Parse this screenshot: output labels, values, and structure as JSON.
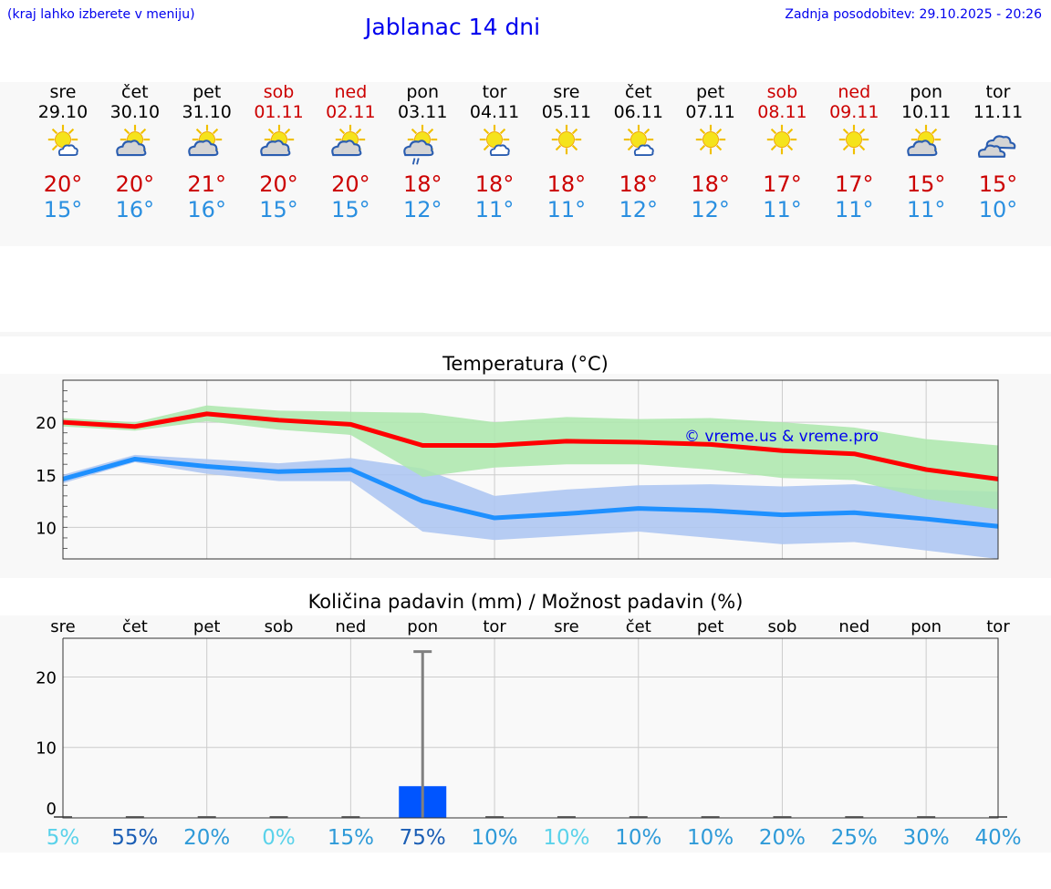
{
  "header": {
    "hint": "(kraj lahko izberete v meniju)",
    "title": "Jablanac 14 dni",
    "updated": "Zadnja posodobitev: 29.10.2025 - 20:26"
  },
  "colors": {
    "max": "#ff0000",
    "min": "#1e90ff",
    "max_band": "#abe8ab",
    "min_band": "#aec6f2",
    "bar": "#0055ff",
    "pct_light": "#5ad2ea",
    "pct_mid": "#2e9ad8",
    "pct_dark": "#1b5eb5"
  },
  "days": [
    {
      "name": "sre",
      "date": "29.10",
      "weekend": false,
      "icon": "sun-small-cloud-icon",
      "max": "20°",
      "min": "15°"
    },
    {
      "name": "čet",
      "date": "30.10",
      "weekend": false,
      "icon": "sun-cloud-icon",
      "max": "20°",
      "min": "16°"
    },
    {
      "name": "pet",
      "date": "31.10",
      "weekend": false,
      "icon": "sun-cloud-icon",
      "max": "21°",
      "min": "16°"
    },
    {
      "name": "sob",
      "date": "01.11",
      "weekend": true,
      "icon": "sun-cloud-icon",
      "max": "20°",
      "min": "15°"
    },
    {
      "name": "ned",
      "date": "02.11",
      "weekend": true,
      "icon": "sun-cloud-icon",
      "max": "20°",
      "min": "15°"
    },
    {
      "name": "pon",
      "date": "03.11",
      "weekend": false,
      "icon": "sun-cloud-rain-icon",
      "max": "18°",
      "min": "12°"
    },
    {
      "name": "tor",
      "date": "04.11",
      "weekend": false,
      "icon": "sun-small-cloud-icon",
      "max": "18°",
      "min": "11°"
    },
    {
      "name": "sre",
      "date": "05.11",
      "weekend": false,
      "icon": "sun-icon",
      "max": "18°",
      "min": "11°"
    },
    {
      "name": "čet",
      "date": "06.11",
      "weekend": false,
      "icon": "sun-small-cloud-icon",
      "max": "18°",
      "min": "12°"
    },
    {
      "name": "pet",
      "date": "07.11",
      "weekend": false,
      "icon": "sun-icon",
      "max": "18°",
      "min": "12°"
    },
    {
      "name": "sob",
      "date": "08.11",
      "weekend": true,
      "icon": "sun-icon",
      "max": "17°",
      "min": "11°"
    },
    {
      "name": "ned",
      "date": "09.11",
      "weekend": true,
      "icon": "sun-icon",
      "max": "17°",
      "min": "11°"
    },
    {
      "name": "pon",
      "date": "10.11",
      "weekend": false,
      "icon": "sun-cloud-icon",
      "max": "15°",
      "min": "11°"
    },
    {
      "name": "tor",
      "date": "11.11",
      "weekend": false,
      "icon": "overcast-icon",
      "max": "15°",
      "min": "10°"
    }
  ],
  "chart_data": [
    {
      "type": "line",
      "title": "Temperatura (°C)",
      "watermark": "© vreme.us & vreme.pro",
      "ylim": [
        7,
        24
      ],
      "yticks": [
        10,
        15,
        20
      ],
      "grid": true,
      "series": [
        {
          "name": "max",
          "values": [
            20.0,
            19.6,
            20.8,
            20.2,
            19.8,
            17.8,
            17.8,
            18.2,
            18.1,
            17.9,
            17.3,
            17.0,
            15.5,
            14.6
          ],
          "band_upper": [
            20.4,
            20.0,
            21.6,
            21.1,
            21.0,
            20.9,
            20.0,
            20.5,
            20.3,
            20.4,
            20.0,
            19.5,
            18.4,
            17.8
          ],
          "band_lower": [
            19.6,
            19.2,
            20.1,
            19.3,
            18.8,
            14.8,
            15.7,
            16.0,
            16.0,
            15.5,
            14.7,
            14.5,
            12.7,
            11.7
          ]
        },
        {
          "name": "min",
          "values": [
            14.6,
            16.5,
            15.8,
            15.3,
            15.5,
            12.5,
            10.9,
            11.3,
            11.8,
            11.6,
            11.2,
            11.4,
            10.8,
            10.1
          ],
          "band_upper": [
            15.0,
            16.9,
            16.5,
            16.1,
            16.6,
            15.6,
            13.0,
            13.6,
            14.0,
            14.1,
            13.9,
            14.1,
            13.6,
            13.4
          ],
          "band_lower": [
            14.2,
            16.2,
            15.1,
            14.4,
            14.4,
            9.6,
            8.8,
            9.2,
            9.6,
            9.0,
            8.4,
            8.6,
            7.8,
            7.0
          ]
        }
      ]
    },
    {
      "type": "bar",
      "title": "Količina padavin (mm) / Možnost padavin (%)",
      "categories": [
        "sre",
        "čet",
        "pet",
        "sob",
        "ned",
        "pon",
        "tor",
        "sre",
        "čet",
        "pet",
        "sob",
        "ned",
        "pon",
        "tor"
      ],
      "ylim": [
        -1,
        25.5
      ],
      "yticks": [
        0,
        10,
        20
      ],
      "values": [
        0,
        0,
        0,
        0,
        0,
        4.5,
        0,
        0,
        0,
        0,
        0,
        0,
        0,
        0
      ],
      "error_max": [
        0,
        0,
        0,
        0,
        0,
        23.6,
        0,
        0,
        0,
        0,
        0,
        0,
        0,
        0
      ],
      "probability": [
        "5%",
        "55%",
        "20%",
        "0%",
        "15%",
        "75%",
        "10%",
        "10%",
        "10%",
        "10%",
        "20%",
        "25%",
        "30%",
        "40%"
      ],
      "probability_level": [
        "light",
        "dark",
        "mid",
        "light",
        "mid",
        "dark",
        "mid",
        "light",
        "mid",
        "mid",
        "mid",
        "mid",
        "mid",
        "mid"
      ]
    }
  ]
}
